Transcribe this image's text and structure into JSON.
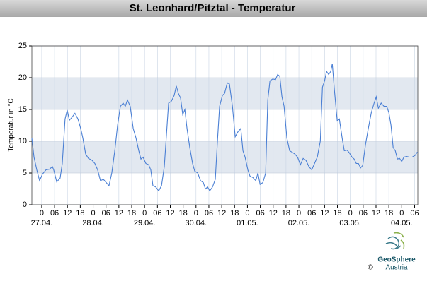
{
  "chart_data": {
    "type": "line",
    "title": "St. Leonhard/Pitztal - Temperatur",
    "ylabel": "Temperatur in °C",
    "color": "#4a7fd4",
    "grid": true,
    "band_color": "#e2e8f0",
    "xlim": [
      -4.6,
      175.5
    ],
    "ylim": [
      0,
      25
    ],
    "yticks": [
      0,
      5,
      10,
      15,
      20,
      25
    ],
    "xticks": [
      0,
      {
        "value": 6,
        "label": "06"
      },
      {
        "value": 12,
        "label": "12"
      },
      {
        "value": 18,
        "label": "18"
      },
      {
        "value": 24,
        "label": "0"
      },
      {
        "value": 30,
        "label": "06"
      },
      {
        "value": 36,
        "label": "12"
      },
      {
        "value": 42,
        "label": "18"
      },
      {
        "value": 48,
        "label": "0"
      },
      {
        "value": 54,
        "label": "06"
      },
      {
        "value": 60,
        "label": "12"
      },
      {
        "value": 66,
        "label": "18"
      },
      {
        "value": 72,
        "label": "0"
      },
      {
        "value": 78,
        "label": "06"
      },
      {
        "value": 84,
        "label": "12"
      },
      {
        "value": 90,
        "label": "18"
      },
      {
        "value": 96,
        "label": "0"
      },
      {
        "value": 102,
        "label": "06"
      },
      {
        "value": 108,
        "label": "12"
      },
      {
        "value": 114,
        "label": "18"
      },
      {
        "value": 120,
        "label": "0"
      },
      {
        "value": 126,
        "label": "06"
      },
      {
        "value": 132,
        "label": "12"
      },
      {
        "value": 138,
        "label": "18"
      },
      {
        "value": 144,
        "label": "0"
      },
      {
        "value": 150,
        "label": "06"
      },
      {
        "value": 156,
        "label": "12"
      },
      {
        "value": 162,
        "label": "18"
      },
      {
        "value": 168,
        "label": "0"
      },
      {
        "value": 174,
        "label": "06"
      }
    ],
    "date_labels": [
      {
        "value": 0,
        "label": "27.04."
      },
      {
        "value": 24,
        "label": "28.04."
      },
      {
        "value": 48,
        "label": "29.04."
      },
      {
        "value": 72,
        "label": "30.04."
      },
      {
        "value": 96,
        "label": "01.05."
      },
      {
        "value": 120,
        "label": "02.05."
      },
      {
        "value": 144,
        "label": "03.05."
      },
      {
        "value": 168,
        "label": "04.05."
      }
    ],
    "x": [
      -4.6,
      -3.6,
      -2.3,
      -1,
      0.3,
      2,
      3.6,
      5,
      5.6,
      7,
      8.6,
      9.6,
      10.9,
      11.9,
      12.9,
      14.2,
      15.5,
      16.9,
      18.2,
      19.2,
      20.5,
      21.8,
      23.5,
      24.8,
      26.1,
      27.4,
      28.8,
      30.1,
      31.4,
      32.7,
      34.1,
      35.4,
      36.7,
      38,
      39,
      40,
      41.3,
      42.7,
      44,
      45.3,
      46.3,
      47.3,
      48.6,
      49.9,
      50.9,
      51.9,
      53.2,
      54.6,
      55.9,
      57.2,
      58.2,
      59.2,
      60.5,
      61.8,
      62.8,
      63.8,
      64.8,
      65.8,
      66.8,
      67.8,
      69.1,
      70.4,
      71.4,
      72.8,
      74.1,
      75.4,
      76.4,
      77.4,
      78.4,
      79.7,
      81,
      82,
      83,
      84.3,
      85.3,
      86.6,
      87.6,
      89,
      90.3,
      91.6,
      92.9,
      93.9,
      94.9,
      96.2,
      97.2,
      98.5,
      99.9,
      100.9,
      101.9,
      103.2,
      104.5,
      105.5,
      106.5,
      107.8,
      109.1,
      110.1,
      111.1,
      112.1,
      113.1,
      114.4,
      115.7,
      116.7,
      118.1,
      119.4,
      120.7,
      122,
      123.3,
      124.7,
      126,
      127.3,
      128.6,
      130,
      131,
      132,
      132.9,
      133.9,
      134.9,
      135.6,
      136.6,
      137.9,
      138.9,
      140.2,
      141.2,
      142.5,
      143.5,
      144.8,
      145.8,
      146.8,
      147.8,
      148.8,
      149.8,
      151.1,
      152.4,
      153.8,
      155.1,
      156.1,
      157.1,
      158.4,
      159.7,
      161,
      162,
      163,
      164,
      165,
      166,
      167,
      168,
      169,
      170.3,
      171.6,
      172.9,
      174.3,
      175.3
    ],
    "values": [
      10.5,
      7.5,
      5.5,
      3.8,
      4.8,
      5.5,
      5.6,
      6,
      5.5,
      3.6,
      4.2,
      6.5,
      13.5,
      14.9,
      13.3,
      13.8,
      14.4,
      13.5,
      12,
      10.5,
      8,
      7.3,
      7,
      6.5,
      5.5,
      3.8,
      4,
      3.5,
      3,
      5,
      8.5,
      12.5,
      15.5,
      16,
      15.5,
      16.5,
      15.5,
      12,
      10.5,
      8.5,
      7.2,
      7.5,
      6.5,
      6.3,
      5.5,
      3,
      2.8,
      2.2,
      3,
      6,
      11,
      16,
      16.3,
      17.2,
      18.7,
      17.5,
      16.8,
      14.2,
      15,
      12,
      9,
      6.5,
      5.3,
      5,
      3.8,
      3.5,
      2.5,
      2.8,
      2.2,
      2.8,
      4,
      10,
      15.5,
      17.2,
      17.5,
      19.2,
      19,
      15.5,
      10.7,
      11.5,
      12,
      8.5,
      7.5,
      5.5,
      4.5,
      4.3,
      3.8,
      5,
      3.2,
      3.5,
      5,
      16.5,
      19.5,
      19.8,
      19.7,
      20.5,
      20.2,
      17,
      15.5,
      10.5,
      8.5,
      8.3,
      8,
      7.5,
      6.3,
      7.3,
      7,
      6,
      5.5,
      6.5,
      7.5,
      10,
      18.5,
      19.5,
      21,
      20.5,
      21,
      22.2,
      18,
      13.2,
      13.5,
      10.5,
      8.5,
      8.6,
      8.2,
      7.5,
      7.2,
      6.5,
      6.5,
      5.8,
      6.2,
      9.5,
      12,
      14.5,
      16,
      17,
      15.2,
      16,
      15.5,
      15.5,
      14.5,
      12.5,
      9,
      8.5,
      7.2,
      7.3,
      6.8,
      7.5,
      7.6,
      7.5,
      7.5,
      7.8,
      8.3
    ]
  },
  "logo": {
    "name": "GeoSphere",
    "sub": "Austria",
    "copyright": "©"
  }
}
